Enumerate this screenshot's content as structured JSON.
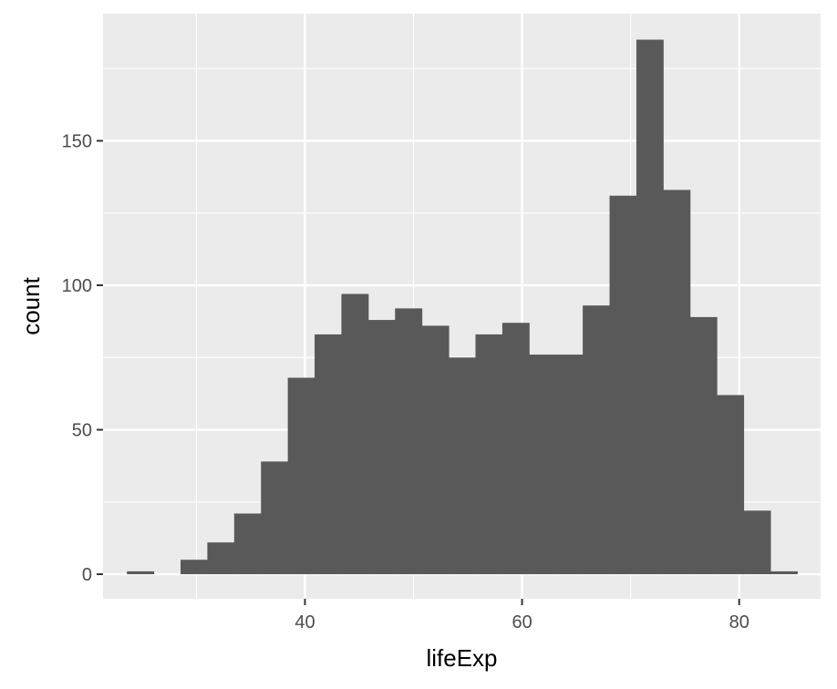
{
  "chart_data": {
    "type": "bar",
    "xlabel": "lifeExp",
    "ylabel": "count",
    "xlim": [
      21.4,
      87.5
    ],
    "ylim": [
      -8.5,
      194
    ],
    "x_ticks": [
      40,
      60,
      80
    ],
    "x_minor_ticks": [
      30,
      50,
      70
    ],
    "y_ticks": [
      0,
      50,
      100,
      150
    ],
    "y_minor_ticks": [
      25,
      75,
      125,
      175
    ],
    "grid": true,
    "bin_width": 2.47,
    "bins": [
      {
        "x0": 23.6,
        "count": 1
      },
      {
        "x0": 26.07,
        "count": 0
      },
      {
        "x0": 28.54,
        "count": 5
      },
      {
        "x0": 31.01,
        "count": 11
      },
      {
        "x0": 33.48,
        "count": 21
      },
      {
        "x0": 35.95,
        "count": 39
      },
      {
        "x0": 38.42,
        "count": 68
      },
      {
        "x0": 40.89,
        "count": 83
      },
      {
        "x0": 43.36,
        "count": 97
      },
      {
        "x0": 45.83,
        "count": 88
      },
      {
        "x0": 48.3,
        "count": 92
      },
      {
        "x0": 50.77,
        "count": 86
      },
      {
        "x0": 53.24,
        "count": 75
      },
      {
        "x0": 55.71,
        "count": 83
      },
      {
        "x0": 58.18,
        "count": 87
      },
      {
        "x0": 60.65,
        "count": 76
      },
      {
        "x0": 63.12,
        "count": 76
      },
      {
        "x0": 65.59,
        "count": 93
      },
      {
        "x0": 68.06,
        "count": 131
      },
      {
        "x0": 70.53,
        "count": 185
      },
      {
        "x0": 73.0,
        "count": 133
      },
      {
        "x0": 75.47,
        "count": 89
      },
      {
        "x0": 77.94,
        "count": 62
      },
      {
        "x0": 80.41,
        "count": 22
      },
      {
        "x0": 82.88,
        "count": 1
      }
    ],
    "colors": {
      "panel": "#ebebeb",
      "grid_major": "#ffffff",
      "bar": "#595959",
      "tick": "#333333"
    }
  }
}
